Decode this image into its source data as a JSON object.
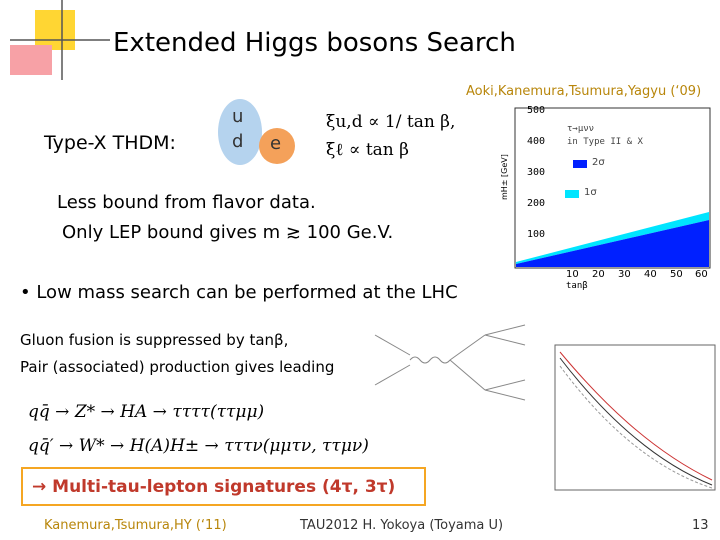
{
  "header": {
    "title": "Extended Higgs bosons Search",
    "citation": "Aoki,Kanemura,Tsumura,Yagyu (‘09)"
  },
  "model": {
    "label": "Type-X THDM:",
    "quarks": [
      "u",
      "d"
    ],
    "lepton": "e",
    "couplings": [
      "ξu,d ∝ 1/ tan β,",
      "ξℓ ∝ tan β"
    ]
  },
  "notes": [
    "Less bound from flavor data.",
    "Only LEP bound gives m ≳ 100 Ge.V."
  ],
  "bullet": "• Low mass search can be performed at the LHC",
  "body": [
    "Gluon fusion is suppressed by tanβ,",
    "Pair (associated) production gives leading"
  ],
  "equations": [
    "qq̄ → Z* → HA → ττττ(ττμμ)",
    "qq̄′ → W* → H(A)H± → τττν(μμτν, ττμν)"
  ],
  "highlight": "→ Multi-tau-lepton signatures (4τ, 3τ)",
  "figure": {
    "yticks": [
      "500",
      "400",
      "300",
      "200",
      "100"
    ],
    "xticks": [
      "10",
      "20",
      "30",
      "40",
      "50",
      "60"
    ],
    "xlabel": "tanβ",
    "ylabel": "mH± [GeV]",
    "legend_title": [
      "τ→μνν",
      "in Type II & X"
    ],
    "legend": [
      "2σ",
      "1σ"
    ]
  },
  "footer": {
    "reference": "Kanemura,Tsumura,HY (‘11)",
    "event": "TAU2012 H. Yokoya (Toyama U)",
    "page": "13"
  }
}
